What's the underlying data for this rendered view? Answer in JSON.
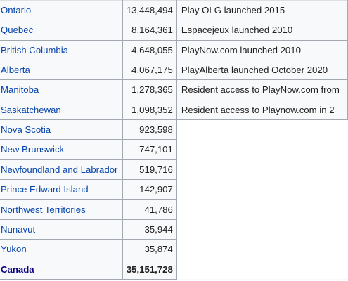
{
  "rows": [
    {
      "province": "Ontario",
      "population": "13,448,494",
      "notes": "Play OLG launched 2015"
    },
    {
      "province": "Quebec",
      "population": "8,164,361",
      "notes": "Espacejeux launched 2010"
    },
    {
      "province": "British Columbia",
      "population": "4,648,055",
      "notes": "PlayNow.com launched 2010"
    },
    {
      "province": "Alberta",
      "population": "4,067,175",
      "notes": "PlayAlberta launched October 2020"
    },
    {
      "province": "Manitoba",
      "population": "1,278,365",
      "notes": "Resident access to PlayNow.com from"
    },
    {
      "province": "Saskatchewan",
      "population": "1,098,352",
      "notes": "Resident access to Playnow.com in 2"
    },
    {
      "province": "Nova Scotia",
      "population": "923,598",
      "notes": ""
    },
    {
      "province": "New Brunswick",
      "population": "747,101",
      "notes": ""
    },
    {
      "province": "Newfoundland and Labrador",
      "population": "519,716",
      "notes": ""
    },
    {
      "province": "Prince Edward Island",
      "population": "142,907",
      "notes": ""
    },
    {
      "province": "Northwest Territories",
      "population": "41,786",
      "notes": ""
    },
    {
      "province": "Nunavut",
      "population": "35,944",
      "notes": ""
    },
    {
      "province": "Yukon",
      "population": "35,874",
      "notes": ""
    }
  ],
  "total": {
    "province": "Canada",
    "population": "35,151,728"
  }
}
